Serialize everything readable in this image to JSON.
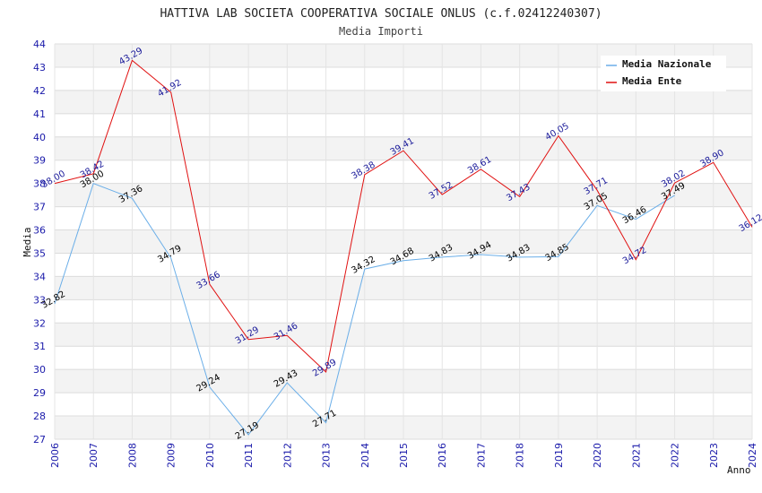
{
  "chart_data": {
    "type": "line",
    "title": "HATTIVA LAB SOCIETA COOPERATIVA SOCIALE ONLUS (c.f.02412240307)",
    "subtitle": "Media Importi",
    "xlabel": "Anno",
    "ylabel": "Media",
    "ylim": [
      27,
      44
    ],
    "yticks": [
      "27",
      "28",
      "29",
      "30",
      "31",
      "32",
      "33",
      "34",
      "35",
      "36",
      "37",
      "38",
      "39",
      "40",
      "41",
      "42",
      "43",
      "44"
    ],
    "categories": [
      "2006",
      "2007",
      "2008",
      "2009",
      "2010",
      "2011",
      "2012",
      "2013",
      "2014",
      "2015",
      "2016",
      "2017",
      "2018",
      "2019",
      "2020",
      "2021",
      "2022",
      "2023",
      "2024"
    ],
    "series": [
      {
        "name": "Media Nazionale",
        "color": "#6aaee8",
        "label_color": "#000000",
        "values": [
          32.82,
          38.0,
          37.36,
          34.79,
          29.24,
          27.19,
          29.43,
          27.71,
          34.32,
          34.68,
          34.83,
          34.94,
          34.83,
          34.85,
          37.05,
          36.46,
          37.49,
          null,
          null
        ],
        "labels": [
          "32.82",
          "38.00",
          "37.36",
          "34.79",
          "29.24",
          "27.19",
          "29.43",
          "27.71",
          "34.32",
          "34.68",
          "34.83",
          "34.94",
          "34.83",
          "34.85",
          "37.05",
          "36.46",
          "37.49",
          "",
          ""
        ]
      },
      {
        "name": "Media Ente",
        "color": "#e01010",
        "label_color": "#1a1a9a",
        "values": [
          38.0,
          38.42,
          43.29,
          41.92,
          33.66,
          31.29,
          31.46,
          29.89,
          38.38,
          39.41,
          37.52,
          38.61,
          37.43,
          40.05,
          37.71,
          34.72,
          38.02,
          38.9,
          36.12
        ],
        "labels": [
          "38.00",
          "38.42",
          "43.29",
          "41.92",
          "33.66",
          "31.29",
          "31.46",
          "29.89",
          "38.38",
          "39.41",
          "37.52",
          "38.61",
          "37.43",
          "40.05",
          "37.71",
          "34.72",
          "38.02",
          "38.90",
          "36.12"
        ]
      }
    ],
    "legend_position": "top-right",
    "grid": true
  }
}
